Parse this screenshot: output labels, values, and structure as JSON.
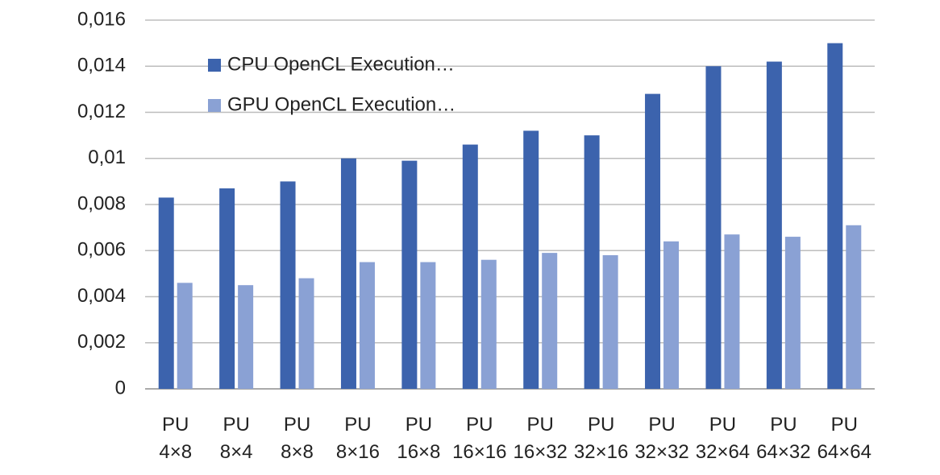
{
  "chart_data": {
    "type": "bar",
    "categories": [
      "PU 4×8",
      "PU 8×4",
      "PU 8×8",
      "PU 8×16",
      "PU 16×8",
      "PU 16×16",
      "PU 16×32",
      "PU 32×16",
      "PU 32×32",
      "PU 32×64",
      "PU 64×32",
      "PU 64×64"
    ],
    "series": [
      {
        "name": "CPU OpenCL Execution…",
        "color": "#3c63ad",
        "values": [
          0.0083,
          0.0087,
          0.009,
          0.01,
          0.0099,
          0.0106,
          0.0112,
          0.011,
          0.0128,
          0.014,
          0.0142,
          0.015
        ]
      },
      {
        "name": "GPU OpenCL Execution…",
        "color": "#8aa1d4",
        "values": [
          0.0046,
          0.0045,
          0.0048,
          0.0055,
          0.0055,
          0.0056,
          0.0059,
          0.0058,
          0.0064,
          0.0067,
          0.0066,
          0.0071
        ]
      }
    ],
    "ylim": [
      0,
      0.016
    ],
    "yticks": [
      0,
      {
        "value": 0.002,
        "label": "0,002"
      },
      {
        "value": 0.004,
        "label": "0,004"
      },
      {
        "value": 0.006,
        "label": "0,006"
      },
      {
        "value": 0.008,
        "label": "0,008"
      },
      {
        "value": 0.01,
        "label": "0,01"
      },
      {
        "value": 0.012,
        "label": "0,012"
      },
      {
        "value": 0.014,
        "label": "0,014"
      },
      {
        "value": 0.016,
        "label": "0,016"
      }
    ],
    "grid": true,
    "legend": "top-left"
  }
}
